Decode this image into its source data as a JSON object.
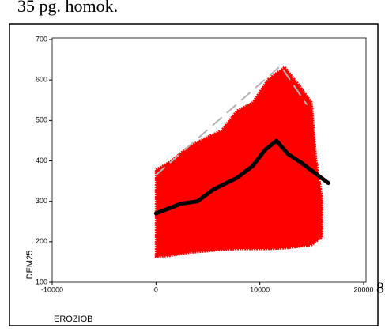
{
  "chart_data": {
    "type": "scatter",
    "title": "35 pg. homok.",
    "x_label": "EROZIOB",
    "y_label": "DEM25",
    "xlim": [
      -10000,
      20000
    ],
    "xticks": [
      -10000,
      0,
      10000,
      20000
    ],
    "ylim": [
      100,
      700
    ],
    "yticks": [
      100,
      200,
      300,
      400,
      500,
      600,
      700
    ],
    "annotations": [
      "8"
    ],
    "cloud": {
      "color": "#ff0000",
      "x": [
        0,
        1300,
        3200,
        4700,
        6300,
        7800,
        9300,
        10800,
        12400,
        13900,
        15000,
        15400,
        16000
      ],
      "upper": [
        378,
        397,
        436,
        456,
        475,
        524,
        544,
        602,
        632,
        583,
        544,
        407,
        309
      ],
      "lower": [
        163,
        165,
        173,
        176,
        180,
        182,
        182,
        182,
        184,
        188,
        192,
        200,
        212
      ]
    },
    "series": [
      {
        "color": "#000000",
        "style": "solid",
        "x": [
          0,
          2400,
          4000,
          5500,
          7800,
          9300,
          10500,
          11600,
          12700,
          13900,
          15400,
          16600
        ],
        "values": [
          270,
          294,
          300,
          329,
          358,
          387,
          427,
          450,
          417,
          397,
          368,
          345
        ]
      },
      {
        "color": "#b4b4b4",
        "style": "dashed",
        "x": [
          0,
          12000,
          14500
        ],
        "values": [
          365,
          635,
          540
        ]
      }
    ]
  }
}
